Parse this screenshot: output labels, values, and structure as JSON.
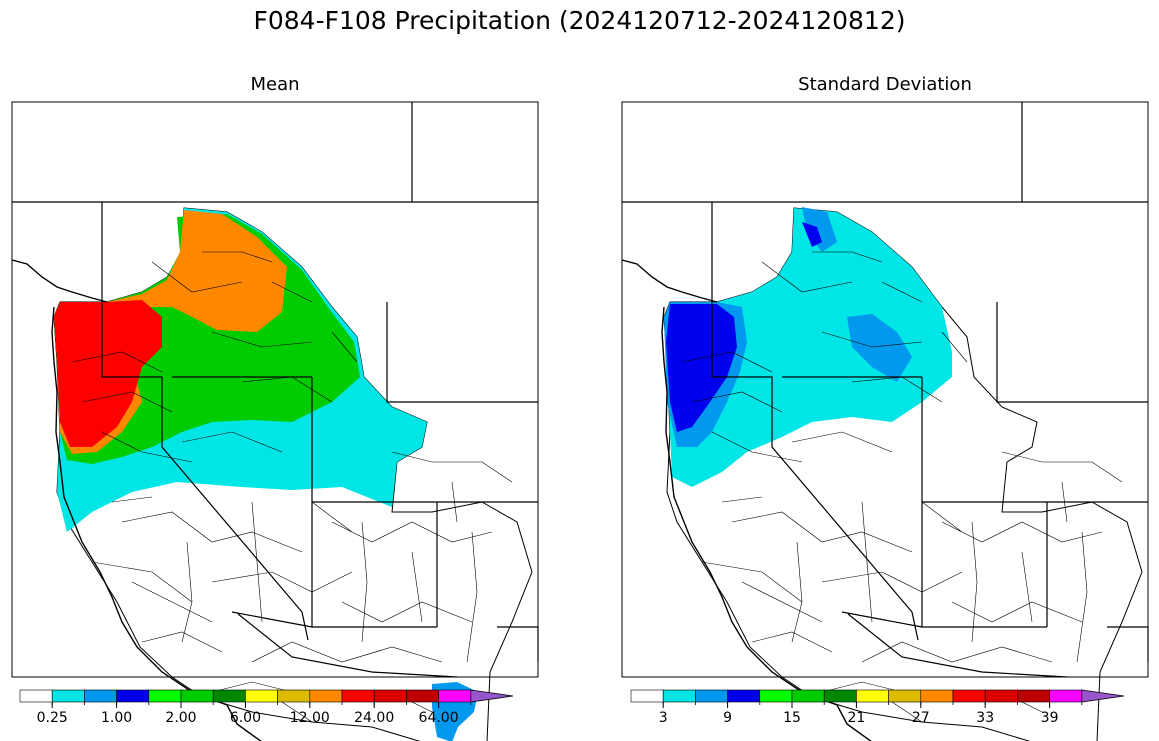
{
  "figure": {
    "title": "F084-F108 Precipitation (2024120712-2024120812)"
  },
  "panels": [
    {
      "title": "Mean",
      "colorbar": {
        "colors": [
          "#ffffff",
          "#00e5e5",
          "#0099ee",
          "#0000ee",
          "#00ff00",
          "#00cc00",
          "#008800",
          "#ffff00",
          "#ddbb00",
          "#ff8800",
          "#ff0000",
          "#dd0000",
          "#bb0000",
          "#ff00ff",
          "#9955cc"
        ],
        "tick_labels": [
          "0.25",
          "1.00",
          "2.00",
          "6.00",
          "12.00",
          "24.00",
          "64.00"
        ]
      }
    },
    {
      "title": "Standard Deviation",
      "colorbar": {
        "colors": [
          "#ffffff",
          "#00e5e5",
          "#0099ee",
          "#0000ee",
          "#00ff00",
          "#00cc00",
          "#008800",
          "#ffff00",
          "#ddbb00",
          "#ff8800",
          "#ff0000",
          "#dd0000",
          "#bb0000",
          "#ff00ff",
          "#9955cc"
        ],
        "tick_labels": [
          "3",
          "9",
          "15",
          "21",
          "27",
          "33",
          "39"
        ]
      }
    }
  ]
}
